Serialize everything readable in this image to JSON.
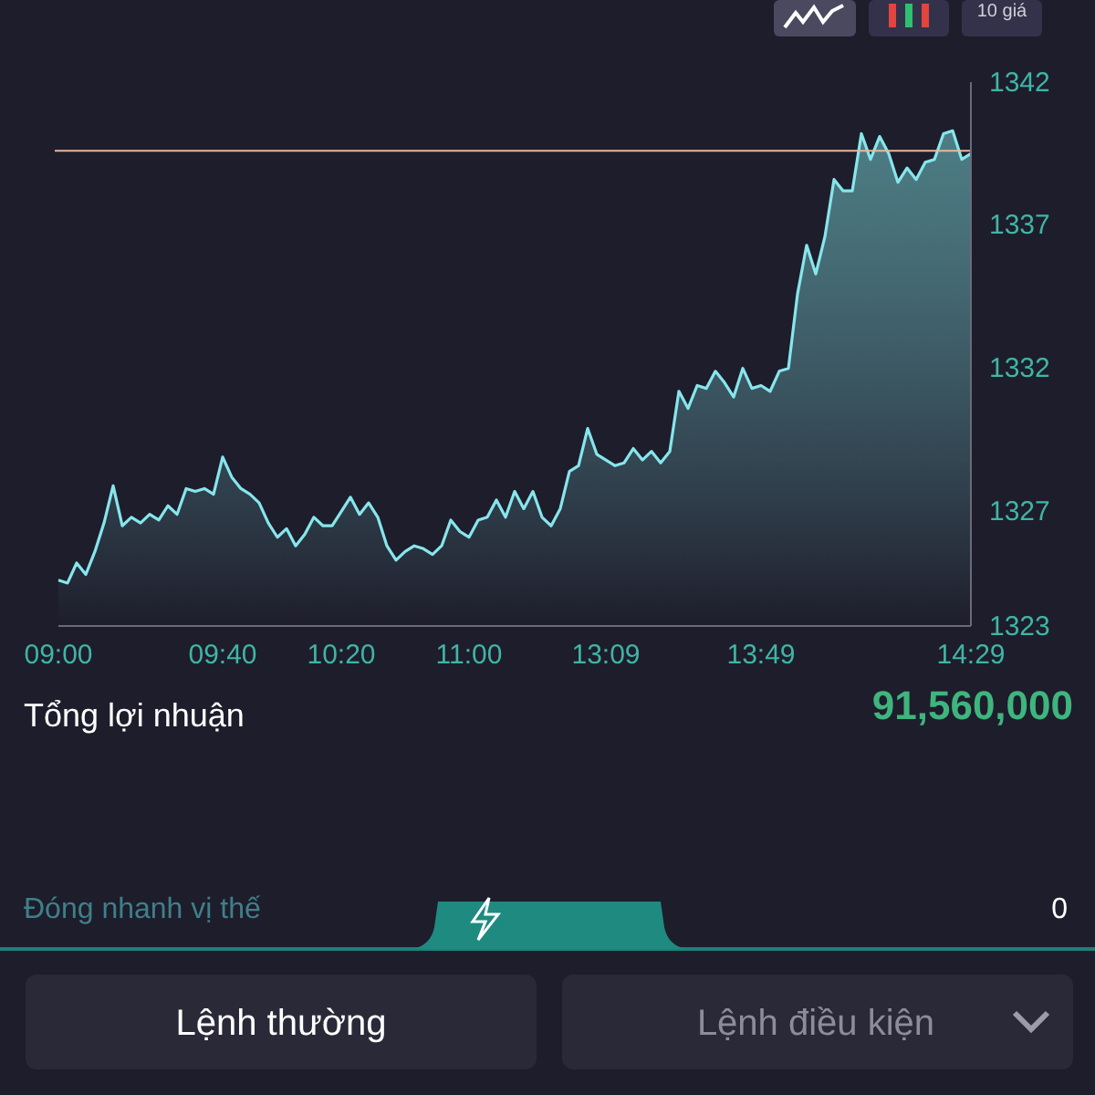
{
  "chart_data": {
    "type": "area",
    "categories": [
      "09:00",
      null,
      null,
      null,
      null,
      null,
      null,
      null,
      null,
      null,
      null,
      null,
      null,
      null,
      null,
      null,
      null,
      null,
      "09:40",
      null,
      null,
      null,
      null,
      null,
      null,
      null,
      null,
      null,
      null,
      null,
      null,
      "10:20",
      null,
      null,
      null,
      null,
      null,
      null,
      null,
      null,
      null,
      null,
      null,
      null,
      null,
      "11:00",
      null,
      null,
      null,
      null,
      null,
      null,
      null,
      null,
      null,
      null,
      null,
      null,
      null,
      null,
      "13:09",
      null,
      null,
      null,
      null,
      null,
      null,
      null,
      null,
      null,
      null,
      null,
      null,
      null,
      null,
      null,
      null,
      "13:49",
      null,
      null,
      null,
      null,
      null,
      null,
      null,
      null,
      null,
      null,
      null,
      null,
      null,
      null,
      null,
      null,
      null,
      null,
      null,
      null,
      null,
      null,
      "14:29"
    ],
    "series": [
      {
        "color": "#86e6ec",
        "values": [
          1324.6,
          1324.5,
          1325.2,
          1324.8,
          1325.6,
          1326.6,
          1327.9,
          1326.5,
          1326.8,
          1326.6,
          1326.9,
          1326.7,
          1327.2,
          1326.9,
          1327.8,
          1327.7,
          1327.8,
          1327.6,
          1328.9,
          1328.2,
          1327.8,
          1327.6,
          1327.3,
          1326.6,
          1326.1,
          1326.4,
          1325.8,
          1326.2,
          1326.8,
          1326.5,
          1326.5,
          1327.0,
          1327.5,
          1326.9,
          1327.3,
          1326.8,
          1325.8,
          1325.3,
          1325.6,
          1325.8,
          1325.7,
          1325.5,
          1325.8,
          1326.7,
          1326.3,
          1326.1,
          1326.7,
          1326.8,
          1327.4,
          1326.8,
          1327.7,
          1327.1,
          1327.7,
          1326.8,
          1326.5,
          1327.1,
          1328.4,
          1328.6,
          1329.9,
          1329.0,
          1328.8,
          1328.6,
          1328.7,
          1329.2,
          1328.8,
          1329.1,
          1328.7,
          1329.1,
          1331.2,
          1330.6,
          1331.4,
          1331.3,
          1331.9,
          1331.5,
          1331.0,
          1332.0,
          1331.3,
          1331.4,
          1331.2,
          1331.9,
          1332.0,
          1334.6,
          1336.3,
          1335.3,
          1336.6,
          1338.6,
          1338.2,
          1338.2,
          1340.2,
          1339.3,
          1340.1,
          1339.5,
          1338.5,
          1339.0,
          1338.6,
          1339.2,
          1339.3,
          1340.2,
          1340.3,
          1339.3,
          1339.5
        ]
      }
    ],
    "ylim": [
      1323,
      1342
    ],
    "yticks": [
      1323,
      1327,
      1332,
      1337,
      1342
    ],
    "ref_lines": [
      {
        "axis": "y",
        "value": 1339.6,
        "color": "#e6b8a2"
      }
    ],
    "grid": false,
    "marker": "none",
    "annotations": [
      "Tổng lợi nhuận",
      "91,560,000",
      "Đóng nhanh vị thế",
      "0",
      "Lệnh thường",
      "Lệnh điều kiện",
      "10 giá"
    ]
  }
}
